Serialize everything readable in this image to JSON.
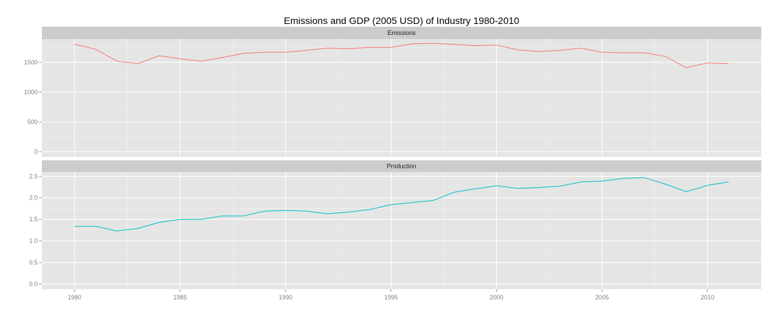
{
  "chart_data": {
    "type": "line",
    "title": "Emissions and GDP (2005 USD) of Industry 1980-2010",
    "xlabel": "",
    "ylabel": "",
    "x": [
      1980,
      1981,
      1982,
      1983,
      1984,
      1985,
      1986,
      1987,
      1988,
      1989,
      1990,
      1991,
      1992,
      1993,
      1994,
      1995,
      1996,
      1997,
      1998,
      1999,
      2000,
      2001,
      2002,
      2003,
      2004,
      2005,
      2006,
      2007,
      2008,
      2009,
      2010,
      2011
    ],
    "xticks": [
      "1980",
      "1985",
      "1990",
      "1995",
      "2000",
      "2005",
      "2010"
    ],
    "xlim": [
      1978.45,
      2012.55
    ],
    "grid": true,
    "legend": "none",
    "panels": [
      {
        "strip": "Emissions",
        "color": "#F8766D",
        "ylim": [
          -85,
          1890
        ],
        "yticks": [
          "0",
          "500",
          "1000",
          "1500"
        ],
        "values": [
          1800,
          1720,
          1520,
          1480,
          1610,
          1560,
          1520,
          1580,
          1650,
          1670,
          1670,
          1700,
          1740,
          1730,
          1750,
          1750,
          1810,
          1820,
          1800,
          1780,
          1790,
          1710,
          1680,
          1700,
          1740,
          1670,
          1660,
          1660,
          1600,
          1410,
          1490,
          1480
        ]
      },
      {
        "strip": "Production",
        "color": "#00BFC4",
        "ylim": [
          -0.12,
          2.6
        ],
        "yticks": [
          "0.0",
          "0.5",
          "1.0",
          "1.5",
          "2.0",
          "2.5"
        ],
        "values": [
          1.34,
          1.34,
          1.23,
          1.29,
          1.43,
          1.5,
          1.5,
          1.58,
          1.58,
          1.69,
          1.71,
          1.69,
          1.63,
          1.67,
          1.73,
          1.84,
          1.89,
          1.94,
          2.13,
          2.21,
          2.28,
          2.22,
          2.24,
          2.27,
          2.37,
          2.39,
          2.45,
          2.47,
          2.32,
          2.14,
          2.29,
          2.37
        ]
      }
    ]
  }
}
